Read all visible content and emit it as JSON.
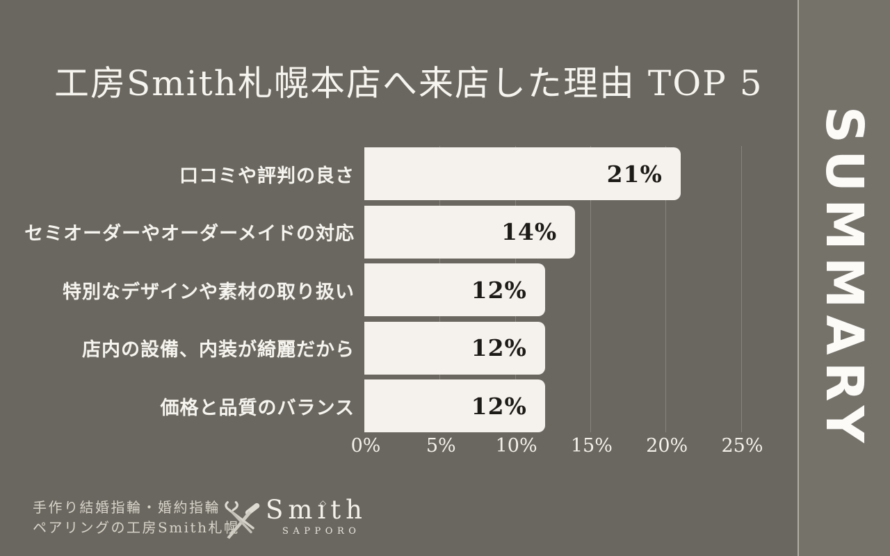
{
  "title": "工房Smith札幌本店へ来店した理由 TOP 5",
  "sidebar": {
    "label": "SUMMARY"
  },
  "chart_data": {
    "type": "bar",
    "orientation": "horizontal",
    "title": "工房Smith札幌本店へ来店した理由 TOP 5",
    "categories": [
      "口コミや評判の良さ",
      "セミオーダーやオーダーメイドの対応",
      "特別なデザインや素材の取り扱い",
      "店内の設備、内装が綺麗だから",
      "価格と品質のバランス"
    ],
    "values": [
      21,
      14,
      12,
      12,
      12
    ],
    "value_labels": [
      "21%",
      "14%",
      "12%",
      "12%",
      "12%"
    ],
    "x_ticks": [
      "0%",
      "5%",
      "10%",
      "15%",
      "20%",
      "25%"
    ],
    "xlim": [
      0,
      25
    ],
    "grid": true,
    "legend": "none",
    "bar_color": "#f5f1ec",
    "value_text_color": "#1d1b18",
    "label_text_color": "#f6f4ee"
  },
  "footer": {
    "tagline_line1": "手作り結婚指輪・婚約指輪",
    "tagline_line2": "ペアリングの工房Smith札幌",
    "logo": {
      "icon": "crossed-tools-icon",
      "name_pre": "Sm",
      "dotless_i": "ı",
      "name_post": "th",
      "diamond": "◇",
      "subtitle": "SAPPORO"
    }
  },
  "colors": {
    "background": "#6a6760",
    "panel_background": "#75726a",
    "divider": "#b0ada3",
    "bar_fill": "#f5f1ec",
    "text_light": "#f6f4ee",
    "text_dark": "#1d1b18",
    "footer_text": "#d8d4ca"
  }
}
